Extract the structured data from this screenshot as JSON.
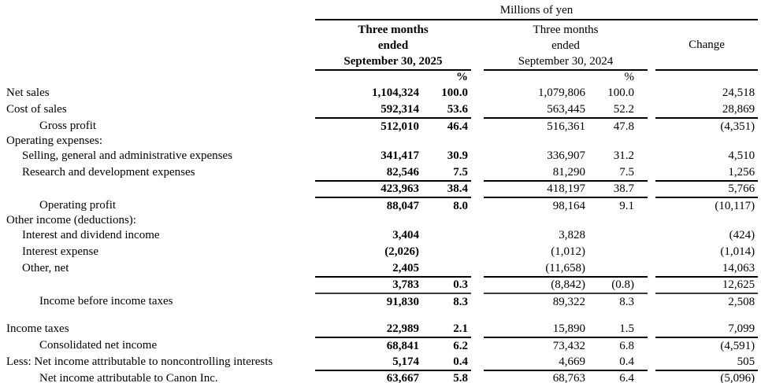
{
  "header": {
    "units_label": "Millions of yen",
    "col_groups": [
      {
        "line1": "Three months",
        "line2": "ended",
        "line3": "September 30, 2025",
        "pct_symbol": "%"
      },
      {
        "line1": "Three months",
        "line2": "ended",
        "line3": "September 30, 2024",
        "pct_symbol": "%"
      },
      {
        "label": "Change"
      }
    ]
  },
  "table": {
    "rows": [
      {
        "label": "Net sales",
        "indent": 0,
        "a2025": "1,104,324",
        "p2025": "100.0",
        "a2024": "1,079,806",
        "p2024": "100.0",
        "change": "24,518"
      },
      {
        "label": "Cost of sales",
        "indent": 0,
        "a2025": "592,314",
        "p2025": "53.6",
        "a2024": "563,445",
        "p2024": "52.2",
        "change": "28,869",
        "rule_below": true
      },
      {
        "label": "Gross profit",
        "indent": 2,
        "a2025": "512,010",
        "p2025": "46.4",
        "a2024": "516,361",
        "p2024": "47.8",
        "change": "(4,351)"
      },
      {
        "label": "Operating expenses:",
        "indent": 0,
        "section": true
      },
      {
        "label": "Selling, general and administrative expenses",
        "indent": 1,
        "a2025": "341,417",
        "p2025": "30.9",
        "a2024": "336,907",
        "p2024": "31.2",
        "change": "4,510"
      },
      {
        "label": "Research and development expenses",
        "indent": 1,
        "a2025": "82,546",
        "p2025": "7.5",
        "a2024": "81,290",
        "p2024": "7.5",
        "change": "1,256",
        "rule_below": true
      },
      {
        "label": "",
        "indent": 0,
        "a2025": "423,963",
        "p2025": "38.4",
        "a2024": "418,197",
        "p2024": "38.7",
        "change": "5,766",
        "rule_below": true
      },
      {
        "label": "Operating profit",
        "indent": 2,
        "a2025": "88,047",
        "p2025": "8.0",
        "a2024": "98,164",
        "p2024": "9.1",
        "change": "(10,117)"
      },
      {
        "label": "Other income (deductions):",
        "indent": 0,
        "section": true
      },
      {
        "label": "Interest and dividend income",
        "indent": 1,
        "a2025": "3,404",
        "p2025": "",
        "a2024": "3,828",
        "p2024": "",
        "change": "(424)"
      },
      {
        "label": "Interest expense",
        "indent": 1,
        "a2025": "(2,026)",
        "p2025": "",
        "a2024": "(1,012)",
        "p2024": "",
        "change": "(1,014)"
      },
      {
        "label": "Other, net",
        "indent": 1,
        "a2025": "2,405",
        "p2025": "",
        "a2024": "(11,658)",
        "p2024": "",
        "change": "14,063",
        "rule_below": true
      },
      {
        "label": "",
        "indent": 0,
        "a2025": "3,783",
        "p2025": "0.3",
        "a2024": "(8,842)",
        "p2024": "(0.8)",
        "change": "12,625",
        "rule_below": true,
        "rule_thick": true
      },
      {
        "label": "Income before income taxes",
        "indent": 2,
        "a2025": "91,830",
        "p2025": "8.3",
        "a2024": "89,322",
        "p2024": "8.3",
        "change": "2,508"
      },
      {
        "blank": true
      },
      {
        "label": "Income taxes",
        "indent": 0,
        "a2025": "22,989",
        "p2025": "2.1",
        "a2024": "15,890",
        "p2024": "1.5",
        "change": "7,099",
        "rule_below": true
      },
      {
        "label": "Consolidated net income",
        "indent": 2,
        "a2025": "68,841",
        "p2025": "6.2",
        "a2024": "73,432",
        "p2024": "6.8",
        "change": "(4,591)"
      },
      {
        "label": "Less: Net income attributable to noncontrolling interests",
        "indent": 0,
        "a2025": "5,174",
        "p2025": "0.4",
        "a2024": "4,669",
        "p2024": "0.4",
        "change": "505",
        "rule_below": true
      },
      {
        "label": "Net income attributable to Canon Inc.",
        "indent": 2,
        "a2025": "63,667",
        "p2025": "5.8",
        "a2024": "68,763",
        "p2024": "6.4",
        "change": "(5,096)",
        "double_rule_below": true
      }
    ]
  }
}
